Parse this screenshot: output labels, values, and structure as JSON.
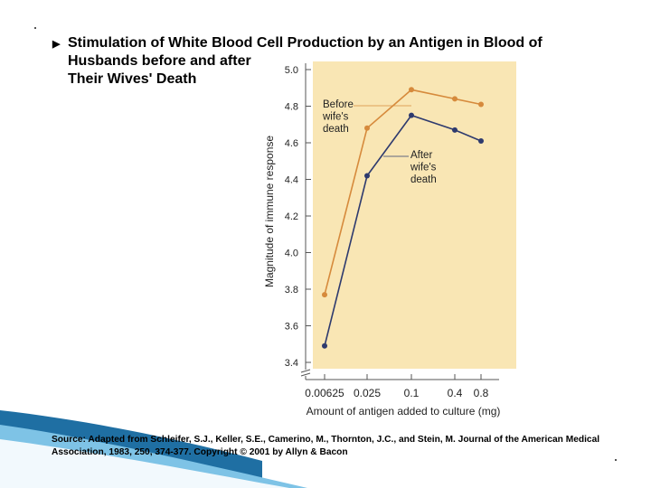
{
  "title": {
    "bullet": "▶",
    "lines": [
      "Stimulation of White Blood Cell Production by an Antigen in Blood of",
      "Husbands before and after",
      "Their Wives' Death"
    ]
  },
  "source": {
    "line1": "Source: Adapted from Schleifer, S.J., Keller, S.E., Camerino, M., Thornton, J.C., and Stein, M. Journal of the American Medical",
    "line2": "Association, 1983, 250, 374-377.  Copyright © 2001 by Allyn & Bacon"
  },
  "colors": {
    "panel": "#f9e6b4",
    "before": "#d68a3c",
    "after": "#2e3a6e",
    "axis": "#555555",
    "wave_dark": "#1f6fa3",
    "wave_light": "#7ec3e6"
  },
  "chart_data": {
    "type": "line",
    "x": [
      "0.00625",
      "0.025",
      "0.1",
      "0.4",
      "0.8"
    ],
    "xlabel": "Amount of antigen added to culture (mg)",
    "ylabel": "Magnitude of immune response",
    "ylim": [
      3.4,
      5.0
    ],
    "yticks": [
      "3.4",
      "3.6",
      "3.8",
      "4.0",
      "4.2",
      "4.4",
      "4.6",
      "4.8",
      "5.0"
    ],
    "axis_break": true,
    "grid": false,
    "series": [
      {
        "name": "Before wife's death",
        "label_lines": [
          "Before",
          "wife's",
          "death"
        ],
        "values": [
          3.77,
          4.68,
          4.89,
          4.84,
          4.81
        ]
      },
      {
        "name": "After wife's death",
        "label_lines": [
          "After",
          "wife's",
          "death"
        ],
        "values": [
          3.49,
          4.42,
          4.75,
          4.67,
          4.61
        ]
      }
    ]
  }
}
